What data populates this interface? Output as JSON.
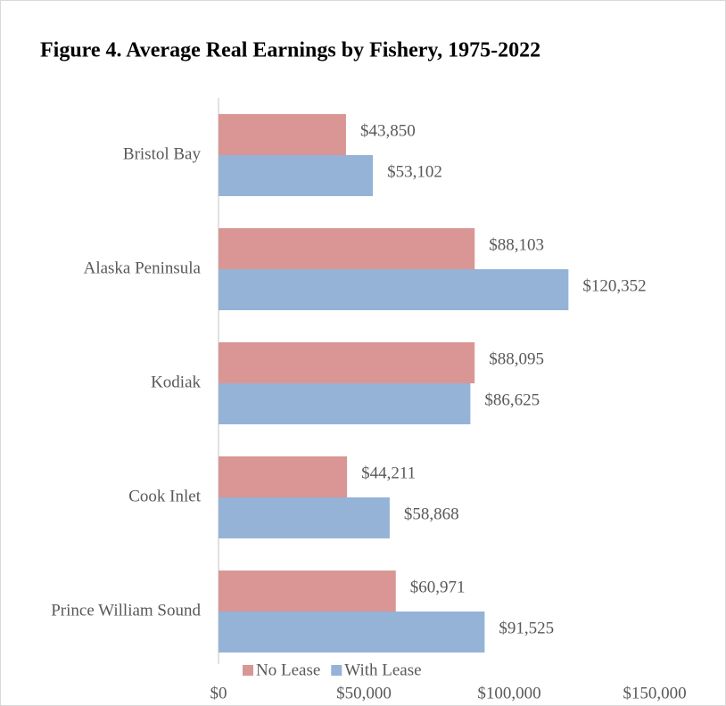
{
  "chart_data": {
    "type": "bar",
    "orientation": "horizontal",
    "title": "Figure 4. Average Real Earnings by Fishery, 1975-2022",
    "categories": [
      "Bristol Bay",
      "Alaska Peninsula",
      "Kodiak",
      "Cook Inlet",
      "Prince William Sound"
    ],
    "series": [
      {
        "name": "No Lease",
        "color": "#d99694",
        "values": [
          43850,
          88103,
          88095,
          44211,
          60971
        ],
        "value_labels": [
          "$43,850",
          "$88,103",
          "$88,095",
          "$44,211",
          "$60,971"
        ]
      },
      {
        "name": "With Lease",
        "color": "#95b3d7",
        "values": [
          53102,
          120352,
          86625,
          58868,
          91525
        ],
        "value_labels": [
          "$53,102",
          "$120,352",
          "$86,625",
          "$58,868",
          "$91,525"
        ]
      }
    ],
    "xlim": [
      0,
      150000
    ],
    "xticks": [
      {
        "value": 0,
        "label": "$0"
      },
      {
        "value": 50000,
        "label": "$50,000"
      },
      {
        "value": 100000,
        "label": "$100,000"
      },
      {
        "value": 150000,
        "label": "$150,000"
      }
    ],
    "grid": false,
    "legend": "bottom"
  }
}
